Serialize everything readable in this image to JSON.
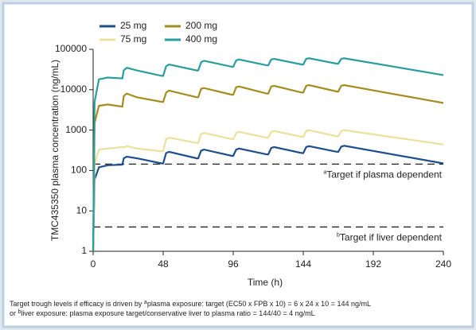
{
  "chart_data": {
    "type": "line",
    "x_label": "Time (h)",
    "y_label": "TMC435350 plasma concentration (ng/mL)",
    "log_scale_y": true,
    "xlim": [
      0,
      240
    ],
    "xticks": [
      0,
      48,
      96,
      144,
      192,
      240
    ],
    "ylim": [
      1,
      100000
    ],
    "yticks": [
      1,
      10,
      100,
      1000,
      10000,
      100000
    ],
    "x": [
      0,
      1,
      4,
      10,
      20,
      21,
      23,
      30,
      47,
      48,
      50,
      52,
      71,
      72,
      74,
      76,
      95,
      96,
      98,
      100,
      119,
      120,
      122,
      124,
      143,
      144,
      146,
      148,
      167,
      168,
      170,
      172,
      240
    ],
    "series": [
      {
        "name": "25 mg",
        "color": "#1f4e8c",
        "values": [
          1,
          60,
          120,
          135,
          140,
          200,
          220,
          200,
          150,
          150,
          270,
          290,
          200,
          200,
          310,
          330,
          230,
          230,
          330,
          350,
          250,
          250,
          360,
          380,
          270,
          270,
          380,
          400,
          290,
          290,
          390,
          410,
          150
        ]
      },
      {
        "name": "75 mg",
        "color": "#ece19a",
        "values": [
          1,
          150,
          330,
          350,
          380,
          370,
          400,
          350,
          300,
          300,
          600,
          650,
          480,
          480,
          800,
          850,
          600,
          600,
          850,
          900,
          650,
          650,
          900,
          950,
          680,
          680,
          950,
          1000,
          700,
          700,
          950,
          1000,
          440
        ]
      },
      {
        "name": "200 mg",
        "color": "#a38d1f",
        "values": [
          1,
          1500,
          4000,
          4300,
          3800,
          7000,
          8000,
          6500,
          5000,
          5000,
          8500,
          9500,
          6500,
          6500,
          10500,
          11000,
          7500,
          7500,
          11500,
          12000,
          8000,
          8000,
          12000,
          12500,
          8500,
          8500,
          12500,
          13000,
          9000,
          9000,
          12500,
          13000,
          4700
        ]
      },
      {
        "name": "400 mg",
        "color": "#2a9e9e",
        "values": [
          1,
          5000,
          18000,
          20000,
          19000,
          30000,
          35000,
          30000,
          22000,
          22000,
          38000,
          42000,
          30000,
          30000,
          48000,
          52000,
          37000,
          37000,
          53000,
          56000,
          40000,
          40000,
          56000,
          58000,
          42000,
          42000,
          58000,
          60000,
          44000,
          44000,
          58000,
          60000,
          23000
        ]
      }
    ],
    "reference_lines": [
      {
        "value": 144,
        "note": "a",
        "label": "Target if plasma dependent"
      },
      {
        "value": 4,
        "note": "b",
        "label": "Target if liver dependent"
      }
    ],
    "footnote": [
      {
        "before": "Target trough levels if efficacy is driven by ",
        "note": "a",
        "after": "plasma exposure: target (EC50 x FPB x 10) = 6 x 24 x 10 = 144 ng/mL"
      },
      {
        "before": "or ",
        "note": "b",
        "after": "liver exposure: plasma exposure target/conservative liver to plasma ratio = 144/40 = 4 ng/mL"
      }
    ]
  }
}
